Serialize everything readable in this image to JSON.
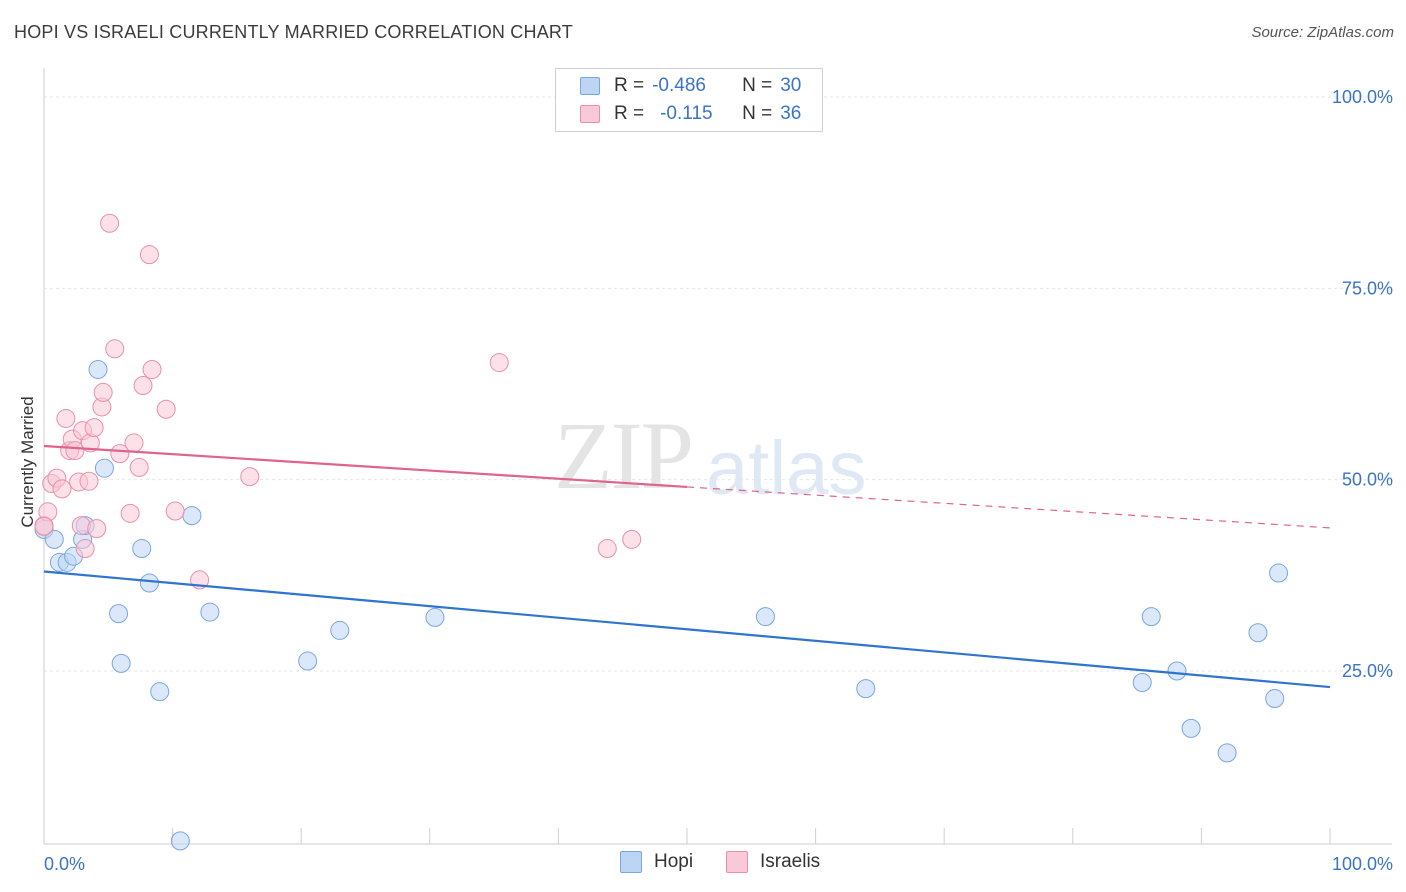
{
  "chart_data": {
    "type": "scatter",
    "title": "HOPI VS ISRAELI CURRENTLY MARRIED CORRELATION CHART",
    "source": "Source: ZipAtlas.com",
    "ylabel": "Currently Married",
    "xlabel": "",
    "xlim": [
      0,
      100
    ],
    "ylim": [
      0,
      100
    ],
    "x_tick_labels": [
      "0.0%",
      "100.0%"
    ],
    "y_tick_labels": [
      "100.0%",
      "75.0%",
      "50.0%",
      "25.0%"
    ],
    "watermark": [
      "ZIP",
      "atlas"
    ],
    "legend": {
      "hopi": {
        "r_label": "R =",
        "r": "-0.486",
        "n_label": "N =",
        "n": "30"
      },
      "israelis": {
        "r_label": "R =",
        "r": "-0.115",
        "n_label": "N =",
        "n": "36"
      }
    },
    "colors": {
      "hopi": "#2f74cf",
      "israelis": "#e0648a"
    },
    "series": [
      {
        "name": "Hopi",
        "trend": {
          "x0": 0,
          "y0": 38.0,
          "x1": 100,
          "y1": 22.9,
          "solid_until": 100
        },
        "points": [
          [
            0.0,
            43.5
          ],
          [
            0.8,
            42.2
          ],
          [
            1.2,
            39.2
          ],
          [
            1.8,
            39.2
          ],
          [
            2.3,
            40.0
          ],
          [
            3.0,
            42.2
          ],
          [
            3.2,
            44.0
          ],
          [
            4.2,
            64.4
          ],
          [
            4.7,
            51.5
          ],
          [
            5.8,
            32.5
          ],
          [
            6.0,
            26.0
          ],
          [
            7.6,
            41.0
          ],
          [
            8.2,
            36.5
          ],
          [
            9.0,
            22.3
          ],
          [
            10.6,
            2.8
          ],
          [
            11.5,
            45.3
          ],
          [
            12.9,
            32.7
          ],
          [
            20.5,
            26.3
          ],
          [
            23.0,
            30.3
          ],
          [
            30.4,
            32.0
          ],
          [
            56.1,
            32.1
          ],
          [
            63.9,
            22.7
          ],
          [
            85.4,
            23.5
          ],
          [
            86.1,
            32.1
          ],
          [
            88.1,
            25.0
          ],
          [
            89.2,
            17.5
          ],
          [
            92.0,
            14.3
          ],
          [
            94.4,
            30.0
          ],
          [
            95.7,
            21.4
          ],
          [
            96.0,
            37.8
          ]
        ]
      },
      {
        "name": "Israelis",
        "trend": {
          "x0": 0,
          "y0": 54.4,
          "x1": 100,
          "y1": 43.7,
          "solid_until": 50
        },
        "points": [
          [
            0.0,
            44.0
          ],
          [
            0.3,
            45.8
          ],
          [
            0.6,
            49.5
          ],
          [
            1.0,
            50.2
          ],
          [
            1.4,
            48.8
          ],
          [
            1.7,
            58.0
          ],
          [
            2.0,
            53.8
          ],
          [
            2.2,
            55.3
          ],
          [
            2.4,
            53.8
          ],
          [
            2.7,
            49.7
          ],
          [
            2.9,
            44.0
          ],
          [
            3.0,
            56.4
          ],
          [
            3.2,
            41.0
          ],
          [
            3.5,
            49.8
          ],
          [
            3.6,
            54.8
          ],
          [
            3.9,
            56.8
          ],
          [
            4.1,
            43.6
          ],
          [
            4.5,
            59.5
          ],
          [
            4.6,
            61.4
          ],
          [
            5.1,
            83.5
          ],
          [
            5.5,
            67.1
          ],
          [
            5.9,
            53.4
          ],
          [
            6.7,
            45.6
          ],
          [
            7.0,
            54.8
          ],
          [
            7.4,
            51.6
          ],
          [
            7.7,
            62.3
          ],
          [
            8.2,
            79.4
          ],
          [
            8.4,
            64.4
          ],
          [
            9.5,
            59.2
          ],
          [
            10.2,
            45.9
          ],
          [
            12.1,
            36.9
          ],
          [
            16.0,
            50.4
          ],
          [
            35.4,
            65.3
          ],
          [
            43.8,
            41.0
          ],
          [
            45.7,
            42.2
          ],
          [
            0.0,
            43.9
          ]
        ]
      }
    ]
  },
  "legend_bottom": {
    "hopi": "Hopi",
    "israelis": "Israelis"
  }
}
